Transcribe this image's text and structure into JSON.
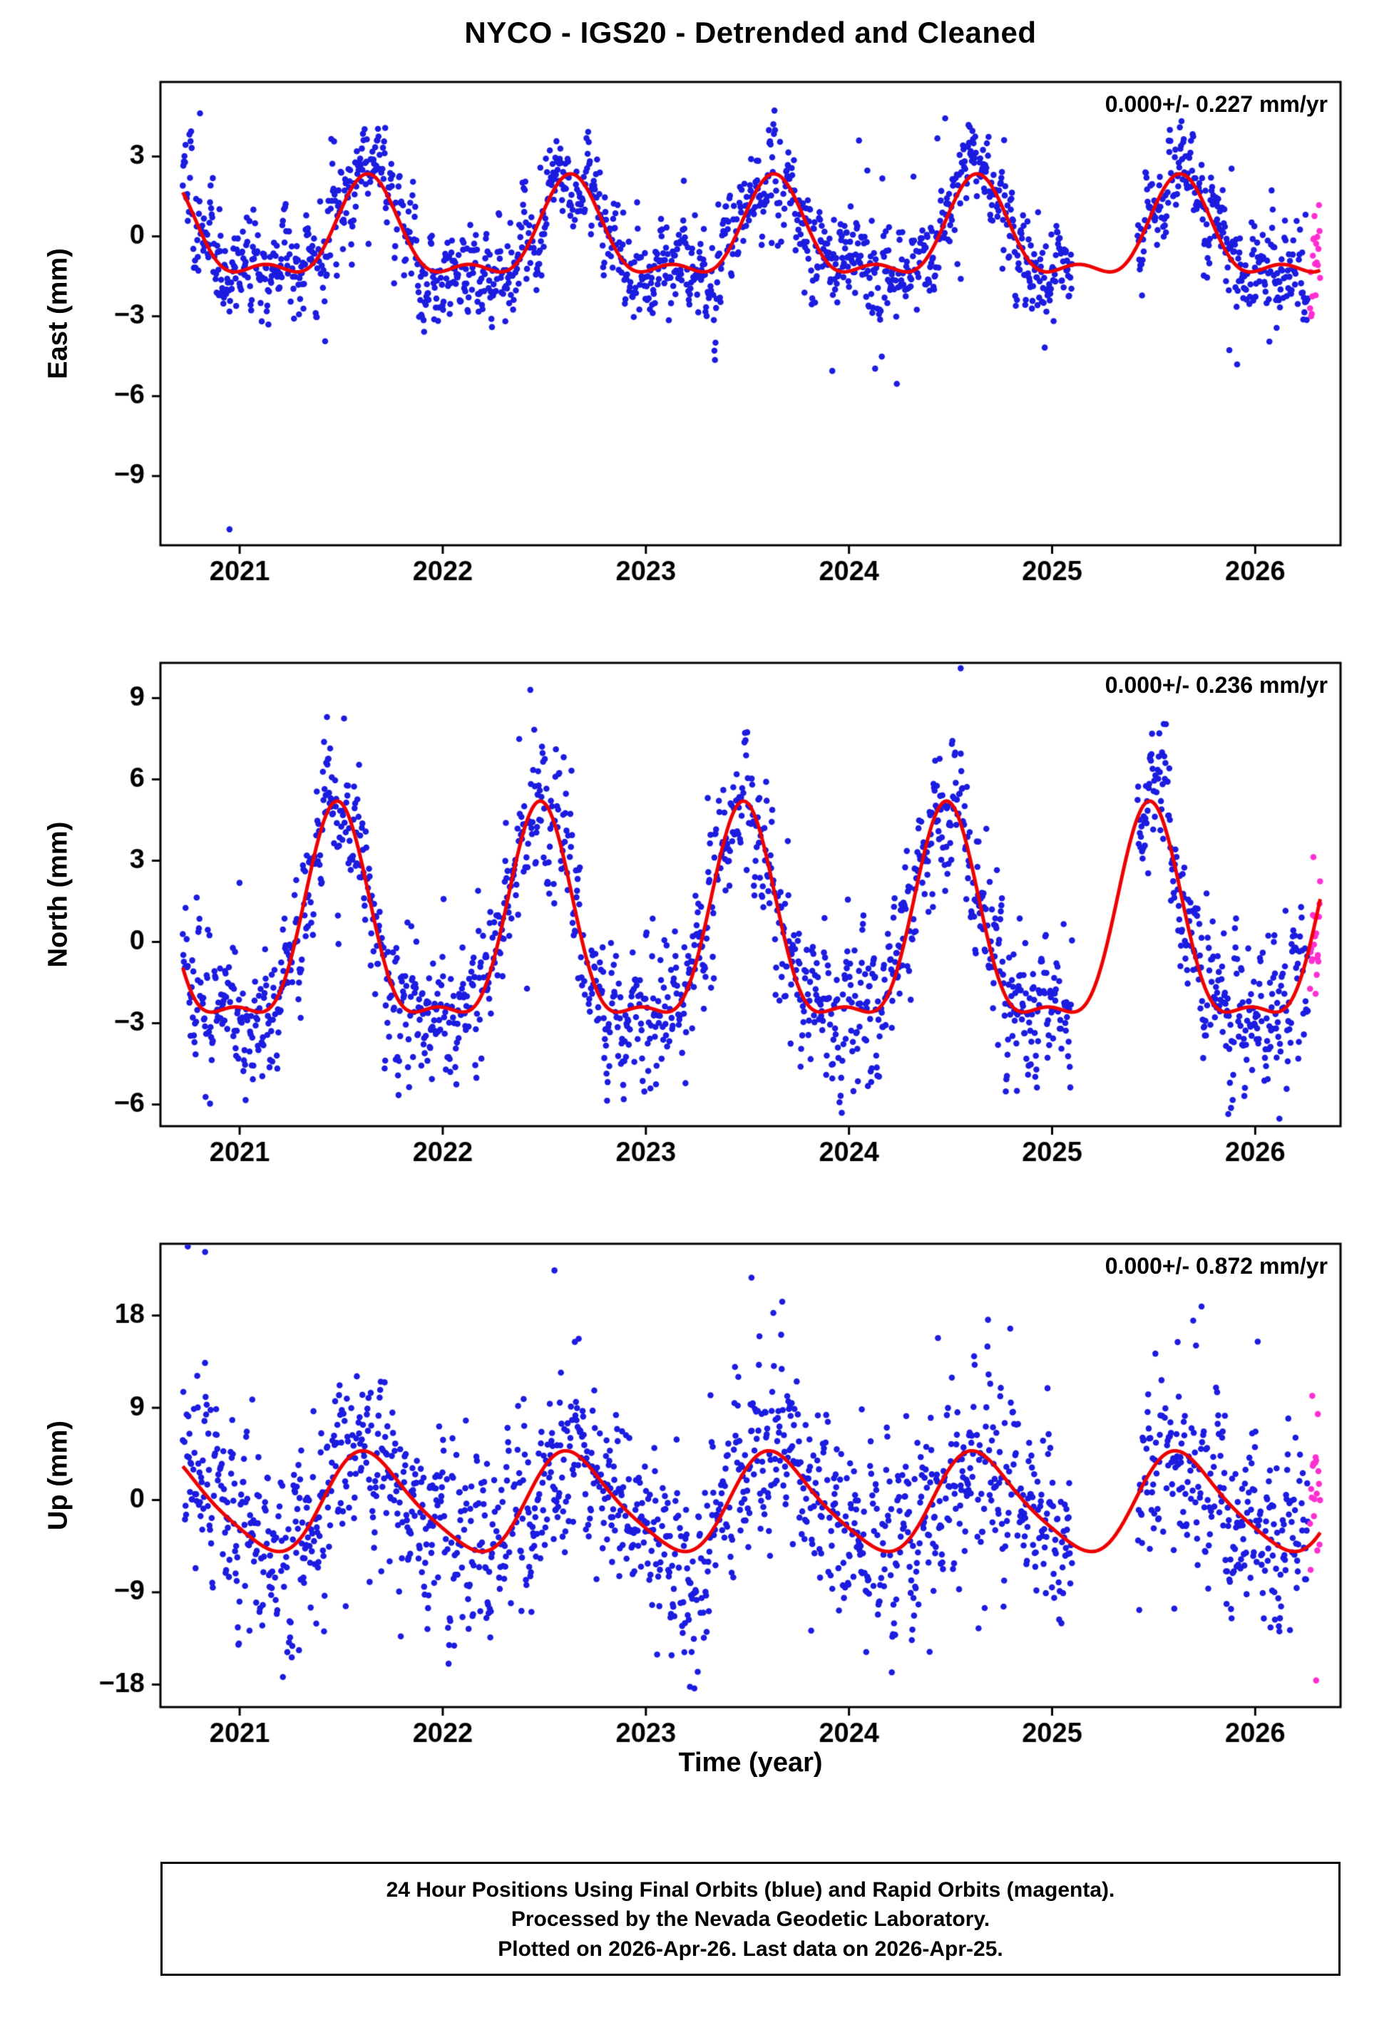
{
  "title": "NYCO - IGS20 - Detrended and Cleaned",
  "xlabel": "Time (year)",
  "footer": {
    "line1": "24 Hour Positions Using Final Orbits (blue) and Rapid Orbits (magenta).",
    "line2": "Processed by the Nevada Geodetic Laboratory.",
    "line3": "Plotted on 2026-Apr-26. Last data on 2026-Apr-25."
  },
  "colors": {
    "final_orbits_blue": "#1c1ce0",
    "rapid_orbits_magenta": "#ff2fd0",
    "model_curve_red": "#ee0000",
    "frame_black": "#000000"
  },
  "station": "NYCO",
  "reference_frame": "IGS20",
  "chart_data": [
    {
      "type": "scatter",
      "component": "East",
      "ylabel": "East (mm)",
      "annotation": "0.000+/- 0.227 mm/yr",
      "trend_mm_per_yr": 0.0,
      "trend_uncertainty_mm_per_yr": 0.227,
      "xlim": [
        2020.61,
        2026.42
      ],
      "xticks": [
        2021,
        2022,
        2023,
        2024,
        2025,
        2026
      ],
      "ylim": [
        -11.6,
        5.8
      ],
      "yticks": [
        3,
        0,
        -3,
        -6,
        -9
      ],
      "data_span": [
        2020.72,
        2026.26
      ],
      "rapid_span": [
        2026.27,
        2026.32
      ],
      "gaps": [
        [
          2025.1,
          2025.42
        ]
      ],
      "seasonal_model": {
        "offset": -0.1,
        "annual": {
          "amp": 1.7,
          "peak": 0.63
        },
        "semiannual": {
          "amp": 0.75,
          "peak": 0.63
        }
      },
      "scatter_sigma_mm": 0.95,
      "outliers": [
        {
          "x": 2020.95,
          "y": -11.0
        }
      ]
    },
    {
      "type": "scatter",
      "component": "North",
      "ylabel": "North (mm)",
      "annotation": "0.000+/- 0.236 mm/yr",
      "trend_mm_per_yr": 0.0,
      "trend_uncertainty_mm_per_yr": 0.236,
      "xlim": [
        2020.61,
        2026.42
      ],
      "xticks": [
        2021,
        2022,
        2023,
        2024,
        2025,
        2026
      ],
      "ylim": [
        -6.8,
        10.3
      ],
      "yticks": [
        9,
        6,
        3,
        0,
        -3,
        -6
      ],
      "data_span": [
        2020.72,
        2026.26
      ],
      "rapid_span": [
        2026.27,
        2026.32
      ],
      "gaps": [
        [
          2025.1,
          2025.42
        ]
      ],
      "seasonal_model": {
        "offset": 0.1,
        "annual": {
          "amp": 3.8,
          "peak": 0.48
        },
        "semiannual": {
          "amp": 1.3,
          "peak": 0.48
        }
      },
      "scatter_sigma_mm": 1.35,
      "outliers": [
        {
          "x": 2024.55,
          "y": 10.1
        },
        {
          "x": 2021.43,
          "y": 8.3
        }
      ]
    },
    {
      "type": "scatter",
      "component": "Up",
      "ylabel": "Up (mm)",
      "annotation": "0.000+/- 0.872 mm/yr",
      "trend_mm_per_yr": 0.0,
      "trend_uncertainty_mm_per_yr": 0.872,
      "xlim": [
        2020.61,
        2026.42
      ],
      "xticks": [
        2021,
        2022,
        2023,
        2024,
        2025,
        2026
      ],
      "ylim": [
        -20.2,
        25.0
      ],
      "yticks": [
        18,
        9,
        0,
        -9,
        -18
      ],
      "data_span": [
        2020.72,
        2026.26
      ],
      "rapid_span": [
        2026.27,
        2026.32
      ],
      "gaps": [
        [
          2025.1,
          2025.42
        ]
      ],
      "seasonal_model": {
        "offset": -0.4,
        "annual": {
          "amp": 4.7,
          "peak": 0.64
        },
        "semiannual": {
          "amp": 0.8,
          "peak": 0.55
        }
      },
      "scatter_sigma_mm": 4.6,
      "outliers": [
        {
          "x": 2020.83,
          "y": 24.2
        },
        {
          "x": 2022.55,
          "y": 22.4
        },
        {
          "x": 2023.52,
          "y": 21.7
        }
      ],
      "rapid_outliers": [
        {
          "x": 2026.3,
          "y": -17.6
        }
      ]
    }
  ]
}
